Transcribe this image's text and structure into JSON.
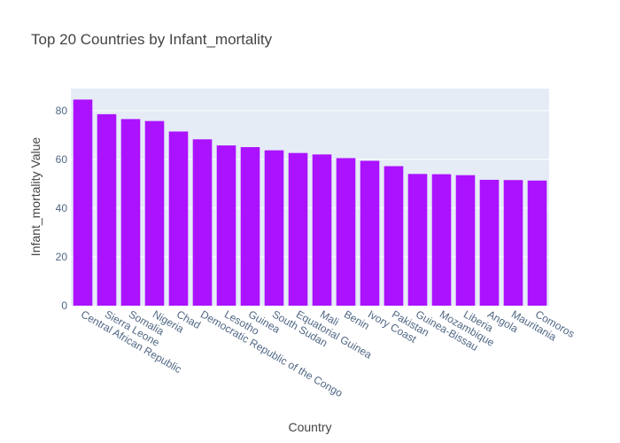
{
  "chart_data": {
    "type": "bar",
    "title": "Top 20 Countries by Infant_mortality",
    "xlabel": "Country",
    "ylabel": "Infant_mortality Value",
    "categories": [
      "Central African Republic",
      "Sierra Leone",
      "Somalia",
      "Nigeria",
      "Chad",
      "Democratic Republic of the Congo",
      "Lesotho",
      "Guinea",
      "South Sudan",
      "Equatorial Guinea",
      "Mali",
      "Benin",
      "Ivory Coast",
      "Pakistan",
      "Guinea-Bissau",
      "Mozambique",
      "Liberia",
      "Angola",
      "Mauritania",
      "Comoros"
    ],
    "values": [
      84.5,
      78.5,
      76.5,
      75.7,
      71.4,
      68.2,
      65.7,
      65.0,
      63.7,
      62.6,
      62.0,
      60.5,
      59.4,
      57.2,
      54.0,
      53.9,
      53.5,
      51.6,
      51.5,
      51.3
    ],
    "ylim": [
      0,
      89
    ],
    "yticks": [
      0,
      20,
      40,
      60,
      80
    ],
    "bar_color": "#ab12ff",
    "plot_background": "#e5ecf6",
    "grid": true,
    "legend": "none"
  }
}
